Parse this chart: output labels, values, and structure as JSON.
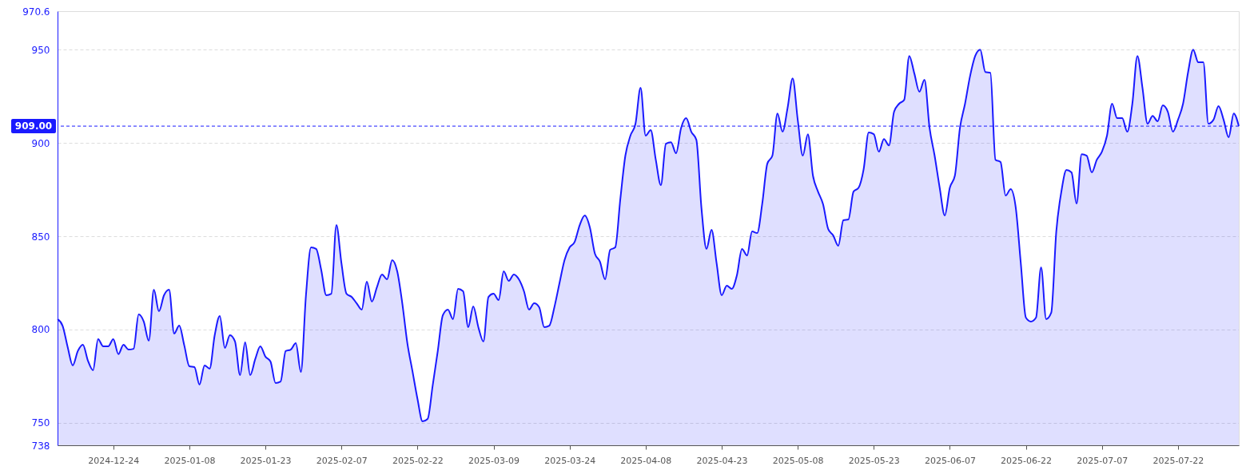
{
  "chart_data": {
    "type": "area",
    "x": [
      "2024-12-13",
      "2024-12-14",
      "2024-12-15",
      "2024-12-16",
      "2024-12-17",
      "2024-12-18",
      "2024-12-19",
      "2024-12-20",
      "2024-12-21",
      "2024-12-22",
      "2024-12-23",
      "2024-12-24",
      "2024-12-25",
      "2024-12-26",
      "2024-12-27",
      "2024-12-28",
      "2024-12-29",
      "2024-12-30",
      "2024-12-31",
      "2025-01-01",
      "2025-01-02",
      "2025-01-03",
      "2025-01-04",
      "2025-01-05",
      "2025-01-06",
      "2025-01-07",
      "2025-01-08",
      "2025-01-09",
      "2025-01-10",
      "2025-01-11",
      "2025-01-12",
      "2025-01-13",
      "2025-01-14",
      "2025-01-15",
      "2025-01-16",
      "2025-01-17",
      "2025-01-18",
      "2025-01-19",
      "2025-01-20",
      "2025-01-21",
      "2025-01-22",
      "2025-01-23",
      "2025-01-24",
      "2025-01-25",
      "2025-01-26",
      "2025-01-27",
      "2025-01-28",
      "2025-01-29",
      "2025-01-30",
      "2025-01-31",
      "2025-02-01",
      "2025-02-02",
      "2025-02-03",
      "2025-02-04",
      "2025-02-05",
      "2025-02-06",
      "2025-02-07",
      "2025-02-08",
      "2025-02-09",
      "2025-02-10",
      "2025-02-11",
      "2025-02-12",
      "2025-02-13",
      "2025-02-14",
      "2025-02-15",
      "2025-02-16",
      "2025-02-17",
      "2025-02-18",
      "2025-02-19",
      "2025-02-20",
      "2025-02-21",
      "2025-02-22",
      "2025-02-23",
      "2025-02-24",
      "2025-02-25",
      "2025-02-26",
      "2025-02-27",
      "2025-02-28",
      "2025-03-01",
      "2025-03-02",
      "2025-03-03",
      "2025-03-04",
      "2025-03-05",
      "2025-03-06",
      "2025-03-07",
      "2025-03-08",
      "2025-03-09",
      "2025-03-10",
      "2025-03-11",
      "2025-03-12",
      "2025-03-13",
      "2025-03-14",
      "2025-03-15",
      "2025-03-16",
      "2025-03-17",
      "2025-03-18",
      "2025-03-19",
      "2025-03-20",
      "2025-03-21",
      "2025-03-22",
      "2025-03-23",
      "2025-03-24",
      "2025-03-25",
      "2025-03-26",
      "2025-03-27",
      "2025-03-28",
      "2025-03-29",
      "2025-03-30",
      "2025-03-31",
      "2025-04-01",
      "2025-04-02",
      "2025-04-03",
      "2025-04-04",
      "2025-04-05",
      "2025-04-06",
      "2025-04-07",
      "2025-04-08",
      "2025-04-09",
      "2025-04-10",
      "2025-04-11",
      "2025-04-12",
      "2025-04-13",
      "2025-04-14",
      "2025-04-15",
      "2025-04-16",
      "2025-04-17",
      "2025-04-18",
      "2025-04-19",
      "2025-04-20",
      "2025-04-21",
      "2025-04-22",
      "2025-04-23",
      "2025-04-24",
      "2025-04-25",
      "2025-04-26",
      "2025-04-27",
      "2025-04-28",
      "2025-04-29",
      "2025-04-30",
      "2025-05-01",
      "2025-05-02",
      "2025-05-03",
      "2025-05-04",
      "2025-05-05",
      "2025-05-06",
      "2025-05-07",
      "2025-05-08",
      "2025-05-09",
      "2025-05-10",
      "2025-05-11",
      "2025-05-12",
      "2025-05-13",
      "2025-05-14",
      "2025-05-15",
      "2025-05-16",
      "2025-05-17",
      "2025-05-18",
      "2025-05-19",
      "2025-05-20",
      "2025-05-21",
      "2025-05-22",
      "2025-05-23",
      "2025-05-24",
      "2025-05-25",
      "2025-05-26",
      "2025-05-27",
      "2025-05-28",
      "2025-05-29",
      "2025-05-30",
      "2025-05-31",
      "2025-06-01",
      "2025-06-02",
      "2025-06-03",
      "2025-06-04",
      "2025-06-05",
      "2025-06-06",
      "2025-06-07",
      "2025-06-08",
      "2025-06-09",
      "2025-06-10",
      "2025-06-11",
      "2025-06-12",
      "2025-06-13",
      "2025-06-14",
      "2025-06-15",
      "2025-06-16",
      "2025-06-17",
      "2025-06-18",
      "2025-06-19",
      "2025-06-20",
      "2025-06-21",
      "2025-06-22",
      "2025-06-23",
      "2025-06-24",
      "2025-06-25",
      "2025-06-26",
      "2025-06-27",
      "2025-06-28",
      "2025-06-29",
      "2025-06-30",
      "2025-07-01",
      "2025-07-02",
      "2025-07-03",
      "2025-07-04",
      "2025-07-05",
      "2025-07-06",
      "2025-07-07",
      "2025-07-08",
      "2025-07-09",
      "2025-07-10",
      "2025-07-11",
      "2025-07-12",
      "2025-07-13",
      "2025-07-14",
      "2025-07-15",
      "2025-07-16",
      "2025-07-17",
      "2025-07-18",
      "2025-07-19",
      "2025-07-20",
      "2025-07-21",
      "2025-07-22",
      "2025-07-23",
      "2025-07-24",
      "2025-07-25",
      "2025-07-26",
      "2025-07-27",
      "2025-07-28",
      "2025-07-29",
      "2025-07-30",
      "2025-07-31",
      "2025-08-01",
      "2025-08-02",
      "2025-08-03"
    ],
    "series": [
      {
        "color": "#1a1aff",
        "values": [
          805.6,
          802,
          790.6,
          780.8,
          788.5,
          791.9,
          783.3,
          778.2,
          794.9,
          791,
          791,
          794.9,
          786.8,
          791.9,
          789.3,
          789.7,
          808.1,
          804.3,
          794,
          821.4,
          809.8,
          818.4,
          821.4,
          797.9,
          802.1,
          791.5,
          780.3,
          779.9,
          770.5,
          780.8,
          779.1,
          797,
          807.3,
          790.2,
          797,
          793.6,
          775.6,
          793.2,
          775.6,
          784.2,
          791,
          785.5,
          782.9,
          771.4,
          772.2,
          788.5,
          789.3,
          792.7,
          777.3,
          818.4,
          844,
          843.2,
          832.1,
          818.4,
          819.2,
          856,
          835.5,
          819.2,
          817.5,
          814.1,
          810.7,
          825.6,
          815,
          822.7,
          829.5,
          826.9,
          837.2,
          831.2,
          814.1,
          792.7,
          777.8,
          762.8,
          750.8,
          752.1,
          770.1,
          788.5,
          807.7,
          810.7,
          805.6,
          821.8,
          820.5,
          801.3,
          812.4,
          801.3,
          793.6,
          817.5,
          819.2,
          815.8,
          831.2,
          826.1,
          829.5,
          826.9,
          820.5,
          810.7,
          814.1,
          812,
          801.3,
          802.1,
          812,
          824.8,
          837.2,
          844,
          847,
          856,
          861.1,
          854.7,
          840.6,
          836.3,
          826.9,
          842.7,
          844,
          869.7,
          893.2,
          903.9,
          910.3,
          929.5,
          903.9,
          906.9,
          891,
          877.4,
          899.6,
          900.4,
          894.5,
          908.1,
          913.3,
          906,
          901.7,
          865.4,
          843.2,
          853.4,
          835.5,
          818.4,
          823.5,
          821.8,
          829.1,
          843.2,
          839.7,
          852.6,
          851.7,
          867.5,
          888.9,
          893.2,
          915.8,
          906,
          918.8,
          934.6,
          912.4,
          893.2,
          904.7,
          882.5,
          873.9,
          867.1,
          853.9,
          850.4,
          844.9,
          858.6,
          859,
          873.9,
          876,
          885.9,
          905.6,
          904.7,
          895.3,
          902.1,
          898.7,
          916.7,
          921,
          923.1,
          946.6,
          937.2,
          927.4,
          933.8,
          908.1,
          893.2,
          876,
          861.1,
          876,
          882.5,
          908.1,
          921,
          935.9,
          946.6,
          950,
          938,
          937.6,
          891,
          889.8,
          871.8,
          875.2,
          865.4,
          835.5,
          806.4,
          804.3,
          806.4,
          833.3,
          805.6,
          809,
          852.6,
          873.9,
          885.5,
          884.2,
          867.5,
          894,
          893.2,
          884.2,
          891,
          895.3,
          903.9,
          921,
          913.3,
          913.3,
          906,
          921,
          946.6,
          929.5,
          910.3,
          914.5,
          911.6,
          920.1,
          916.7,
          906,
          912.4,
          921,
          938,
          950,
          943.2,
          943.2,
          910.3,
          912.4,
          919.7,
          912.4,
          903,
          915.8,
          909
        ]
      }
    ],
    "xlim": [
      "2024-12-13",
      "2025-08-03"
    ],
    "xticks": [
      "2024-12-24",
      "2025-01-08",
      "2025-01-23",
      "2025-02-07",
      "2025-02-22",
      "2025-03-09",
      "2025-03-24",
      "2025-04-08",
      "2025-04-23",
      "2025-05-08",
      "2025-05-23",
      "2025-06-07",
      "2025-06-22",
      "2025-07-07",
      "2025-07-22"
    ],
    "ylim": [
      738,
      970.6
    ],
    "yticks": [
      738,
      750,
      800,
      850,
      900,
      950,
      970.6
    ],
    "grid": "y",
    "ref_lines": [
      {
        "axis": "y",
        "value": 909,
        "label": "909.00",
        "color": "#1a1aff",
        "line_style": "dashed"
      }
    ]
  }
}
